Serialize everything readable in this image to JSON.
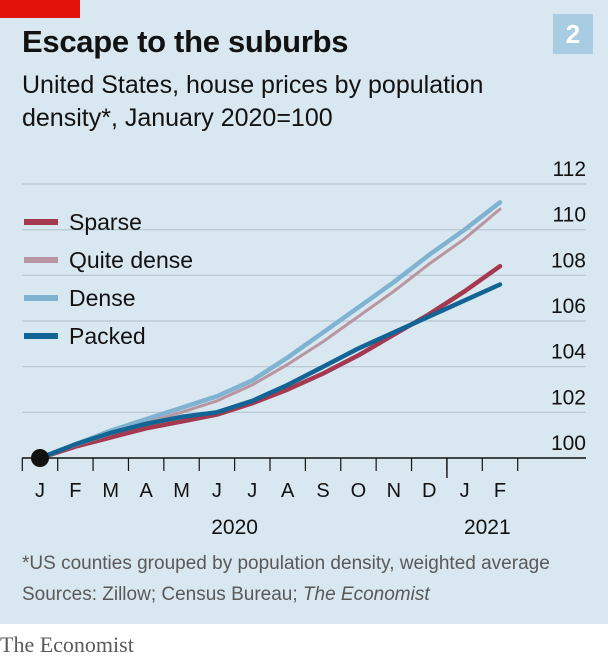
{
  "chart_number": "2",
  "title": "Escape to the suburbs",
  "subtitle": "United States, house prices by population density*, January 2020=100",
  "footnote": "*US counties grouped by population density, weighted average",
  "sources": {
    "prefix": "Sources: Zillow; Census Bureau; ",
    "italic": "The Economist"
  },
  "brand": "The Economist",
  "colors": {
    "background": "#d9e7f0",
    "sparse": "#a5394f",
    "quite_dense": "#b995a1",
    "dense": "#7fb3d1",
    "packed": "#116494",
    "grid": "#b7c6d0",
    "axis": "#121212",
    "accent": "#e3120b"
  },
  "chart_data": {
    "type": "line",
    "x": [
      "J",
      "F",
      "M",
      "A",
      "M",
      "J",
      "J",
      "A",
      "S",
      "O",
      "N",
      "D",
      "J",
      "F"
    ],
    "x_year_labels": [
      {
        "label": "2020",
        "index": 5.5
      },
      {
        "label": "2021",
        "index": 12.5
      }
    ],
    "ylim": [
      100,
      112
    ],
    "yticks": [
      100,
      102,
      104,
      106,
      108,
      110,
      112
    ],
    "y_axis_side": "right",
    "grid": true,
    "legend_placement": "top-left",
    "start_marker": {
      "x_index": 0,
      "y": 100
    },
    "series": [
      {
        "name": "Sparse",
        "color": "#a5394f",
        "values": [
          100,
          100.5,
          100.9,
          101.3,
          101.6,
          101.9,
          102.4,
          103.0,
          103.7,
          104.5,
          105.4,
          106.3,
          107.3,
          108.4
        ]
      },
      {
        "name": "Quite dense",
        "color": "#b995a1",
        "values": [
          100,
          100.55,
          101.05,
          101.55,
          102.0,
          102.5,
          103.2,
          104.1,
          105.1,
          106.2,
          107.3,
          108.5,
          109.6,
          110.9
        ]
      },
      {
        "name": "Dense",
        "color": "#7fb3d1",
        "values": [
          100,
          100.6,
          101.2,
          101.7,
          102.2,
          102.7,
          103.4,
          104.4,
          105.5,
          106.6,
          107.7,
          108.9,
          110.0,
          111.2
        ]
      },
      {
        "name": "Packed",
        "color": "#116494",
        "values": [
          100,
          100.6,
          101.1,
          101.5,
          101.8,
          102.0,
          102.5,
          103.2,
          104.0,
          104.8,
          105.5,
          106.2,
          106.9,
          107.6
        ]
      }
    ]
  }
}
